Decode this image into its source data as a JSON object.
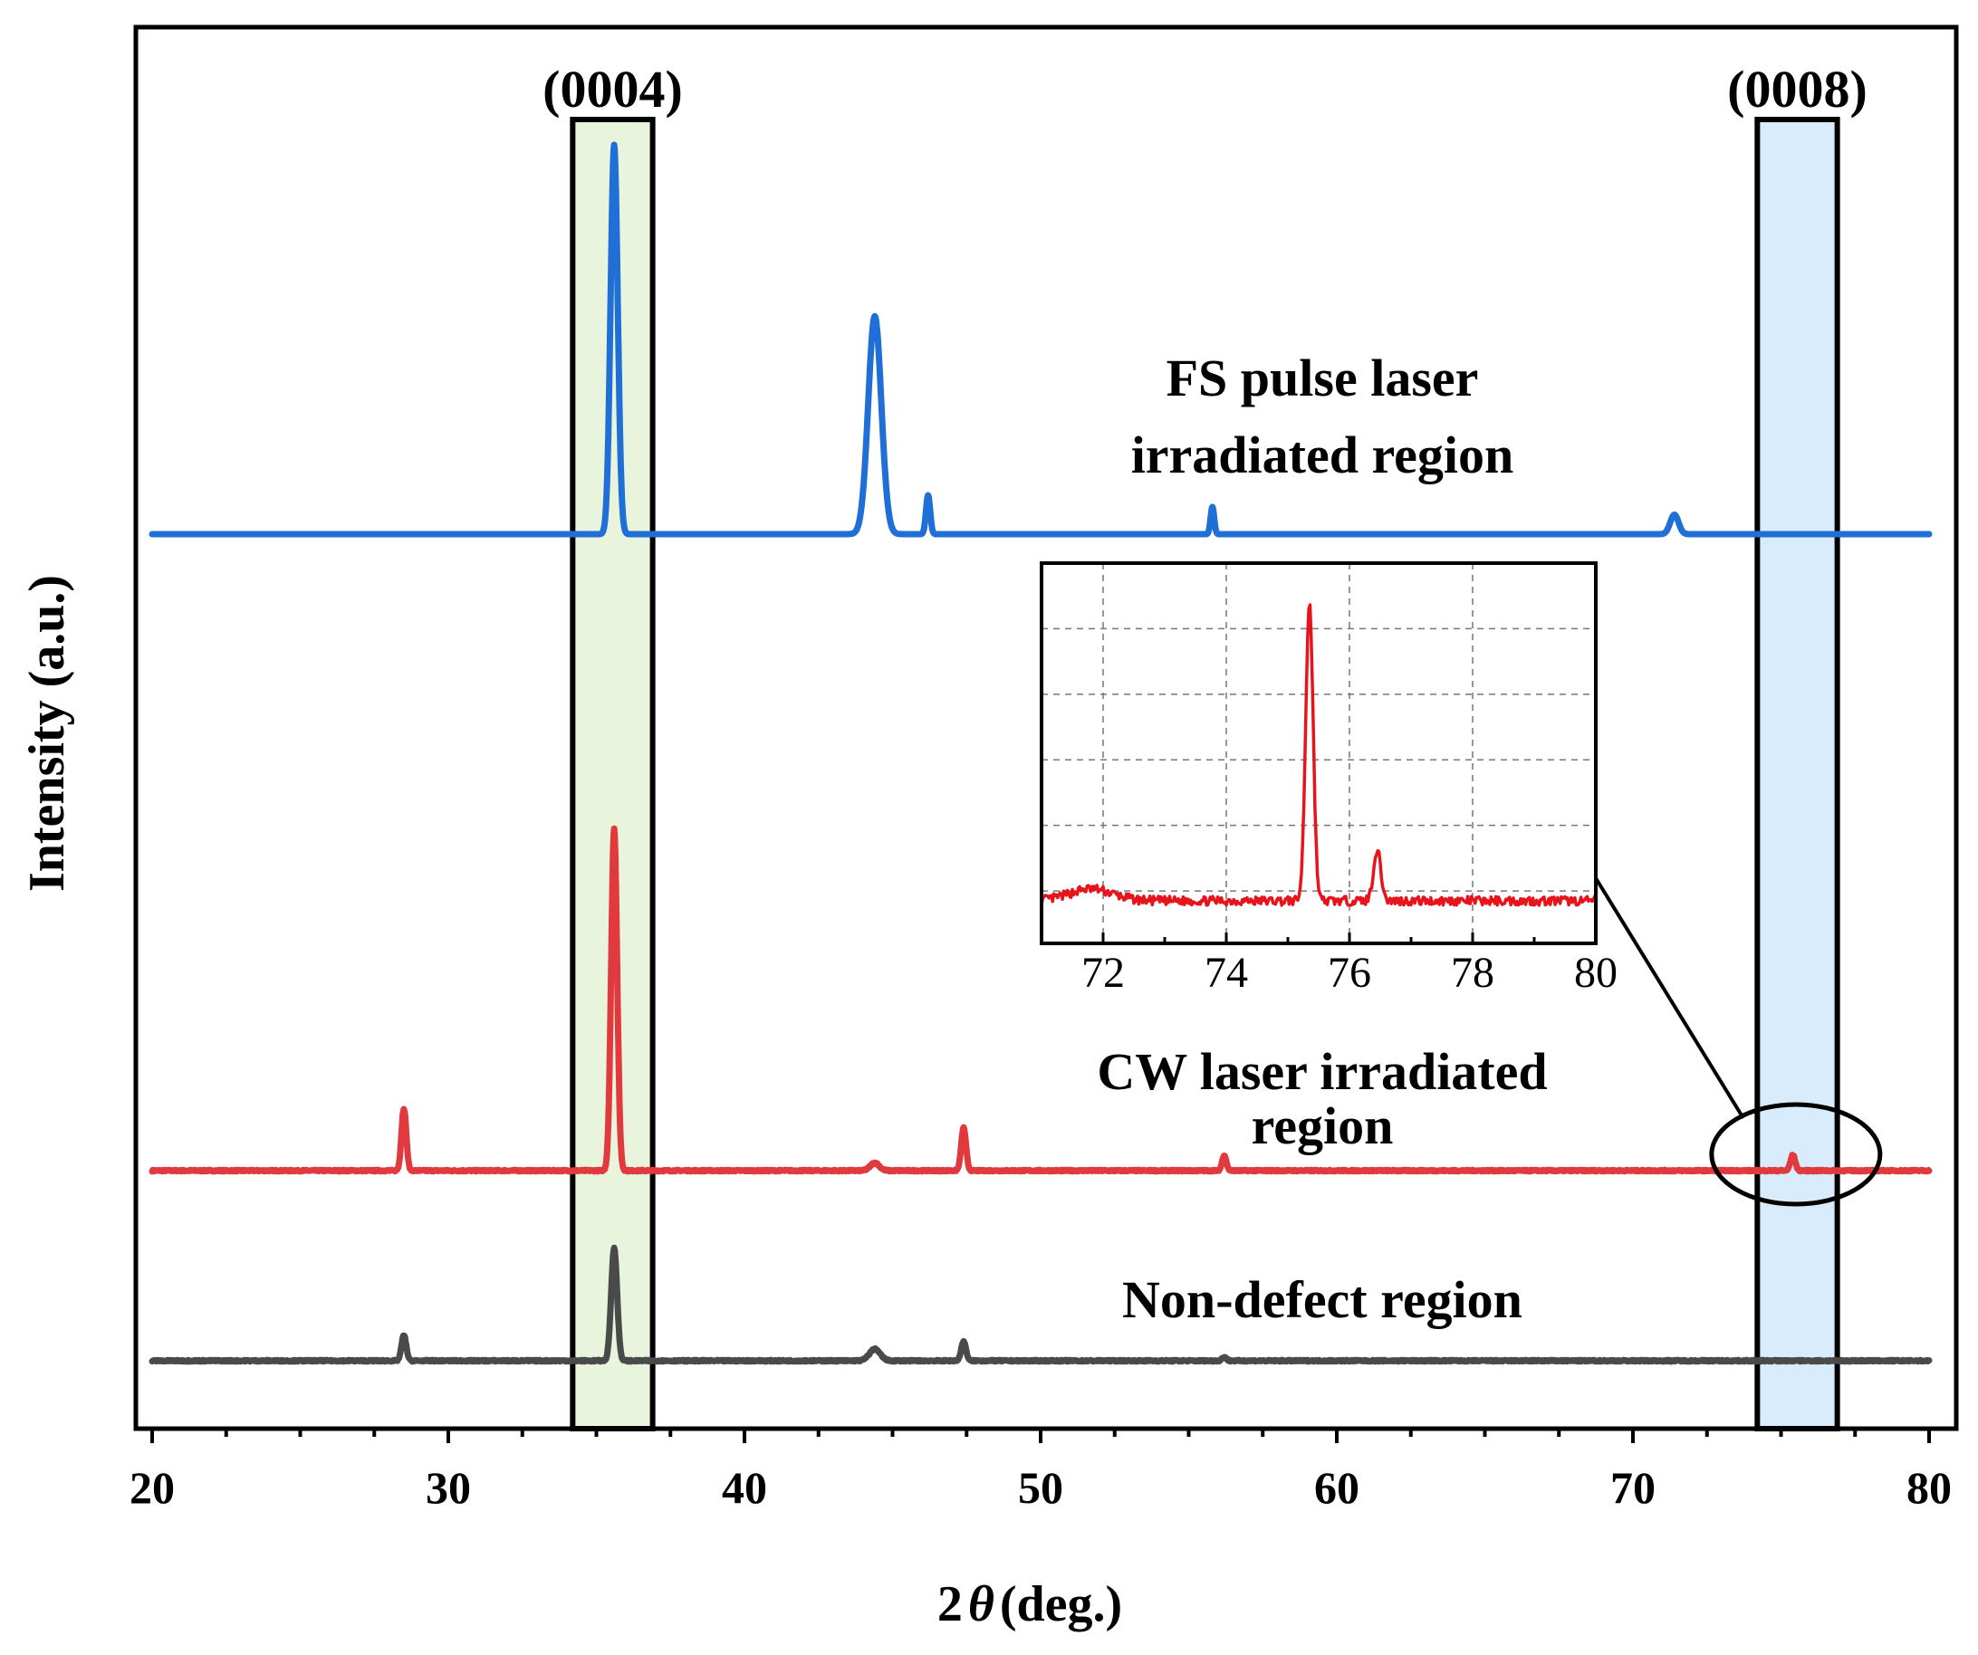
{
  "chart_data": {
    "type": "line",
    "title": "",
    "xlabel": "2θ (deg.)",
    "xlabel_prefix": "2",
    "xlabel_symbol": "θ",
    "xlabel_suffix": "(deg.)",
    "ylabel": "Intensity (a.u.)",
    "xlim": [
      20,
      80
    ],
    "x_ticks": [
      20,
      30,
      40,
      50,
      60,
      70,
      80
    ],
    "highlights": [
      {
        "label": "(0004)",
        "x_range": [
          34.2,
          36.9
        ],
        "color": "#e8f4dc"
      },
      {
        "label": "(0008)",
        "x_range": [
          74.2,
          76.9
        ],
        "color": "#d8ecfb"
      }
    ],
    "series": [
      {
        "name": "FS pulse laser irradiated region",
        "label_lines": [
          "FS pulse laser",
          "irradiated region"
        ],
        "color": "#1f6fd6",
        "baseline": 0,
        "peaks": [
          {
            "x": 35.6,
            "height": 1.0,
            "width": 0.12
          },
          {
            "x": 44.4,
            "height": 0.56,
            "width": 0.22
          },
          {
            "x": 46.2,
            "height": 0.1,
            "width": 0.07
          },
          {
            "x": 55.8,
            "height": 0.07,
            "width": 0.06
          },
          {
            "x": 71.4,
            "height": 0.05,
            "width": 0.14
          }
        ]
      },
      {
        "name": "CW laser irradiated region",
        "label_lines": [
          "CW laser irradiated",
          "region"
        ],
        "color": "#e0393e",
        "baseline": 0,
        "peaks": [
          {
            "x": 28.5,
            "height": 0.16,
            "width": 0.08
          },
          {
            "x": 35.6,
            "height": 0.88,
            "width": 0.1
          },
          {
            "x": 44.4,
            "height": 0.02,
            "width": 0.15
          },
          {
            "x": 47.4,
            "height": 0.11,
            "width": 0.08
          },
          {
            "x": 56.2,
            "height": 0.04,
            "width": 0.07
          },
          {
            "x": 75.4,
            "height": 0.04,
            "width": 0.08
          }
        ]
      },
      {
        "name": "Non-defect region",
        "label_lines": [
          "Non-defect region"
        ],
        "color": "#4a4a4a",
        "baseline": 0,
        "peaks": [
          {
            "x": 28.5,
            "height": 0.065,
            "width": 0.08
          },
          {
            "x": 35.6,
            "height": 0.29,
            "width": 0.1
          },
          {
            "x": 44.4,
            "height": 0.03,
            "width": 0.18
          },
          {
            "x": 47.4,
            "height": 0.05,
            "width": 0.08
          },
          {
            "x": 56.2,
            "height": 0.01,
            "width": 0.07
          }
        ]
      }
    ],
    "inset": {
      "series_name": "CW laser irradiated region",
      "xlim": [
        71,
        80
      ],
      "x_ticks": [
        72,
        74,
        76,
        78,
        80
      ],
      "color": "#e8141c",
      "grid": true,
      "peaks": [
        {
          "x": 75.35,
          "height": 1.0,
          "width": 0.06
        },
        {
          "x": 76.45,
          "height": 0.17,
          "width": 0.06
        },
        {
          "x": 71.8,
          "height": 0.04,
          "width": 0.35
        }
      ]
    }
  }
}
